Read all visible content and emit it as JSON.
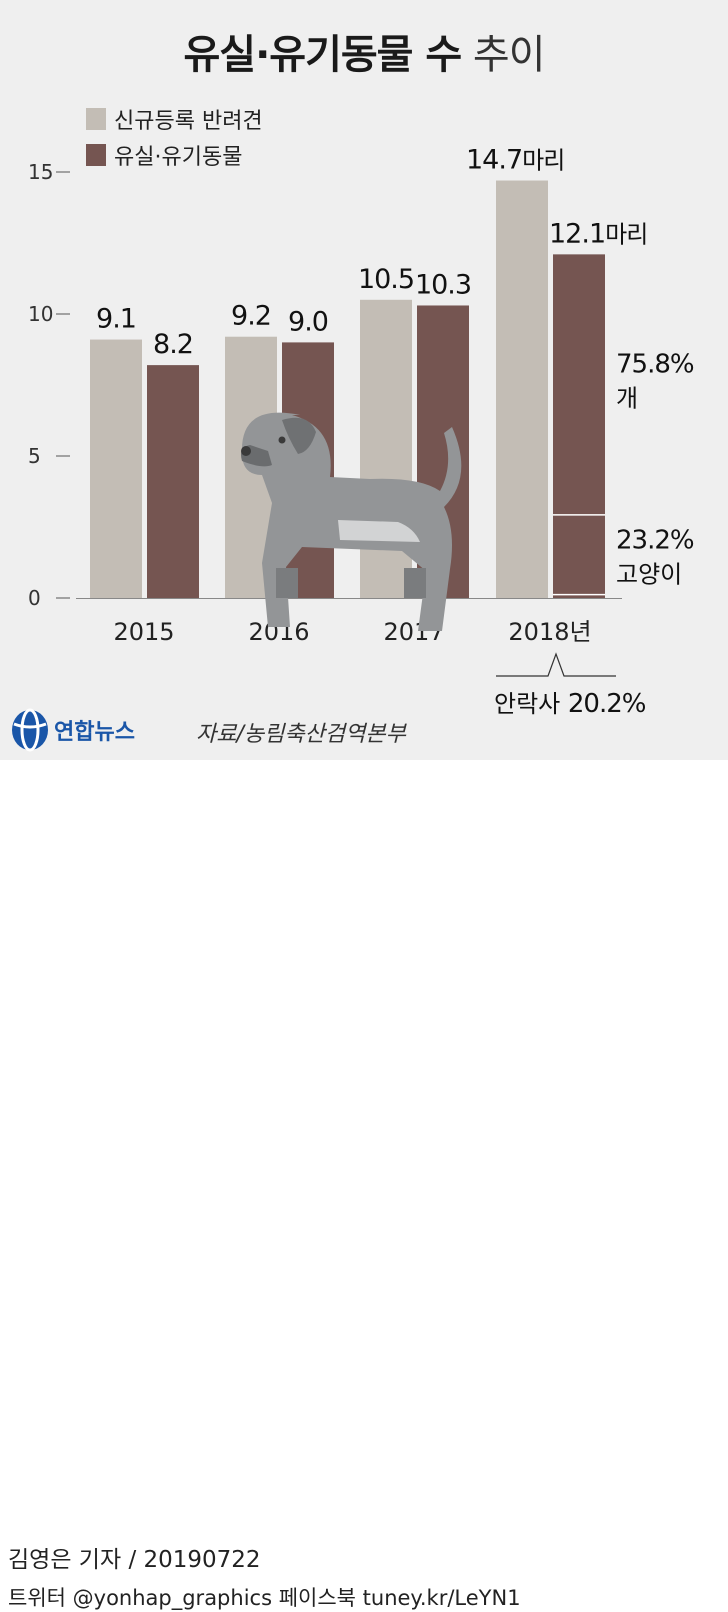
{
  "title": {
    "bold": "유실·유기동물 수",
    "normal": "추이"
  },
  "chart_data": {
    "type": "bar",
    "categories": [
      "2015",
      "2016",
      "2017",
      "2018년"
    ],
    "ylim": [
      0,
      15
    ],
    "yticks": [
      "0",
      "5",
      "10",
      "15"
    ],
    "series": [
      {
        "name": "신규등록 반려견",
        "values": [
          9.1,
          9.2,
          10.5,
          14.7
        ],
        "color": "#c3bdb5",
        "labels": [
          "9.1",
          "9.2",
          "10.5",
          "14.7"
        ]
      },
      {
        "name": "유실·유기동물",
        "values": [
          8.2,
          9.0,
          10.3,
          12.1
        ],
        "color": "#755551",
        "labels": [
          "8.2",
          "9.0",
          "10.3",
          "12.1"
        ]
      }
    ],
    "unit_label": "마리",
    "breakdown_2018": [
      {
        "pct": "75.8%",
        "label": "개",
        "share": 0.758
      },
      {
        "pct": "23.2%",
        "label": "고양이",
        "share": 0.232
      }
    ],
    "euthanasia_note": {
      "label": "안락사",
      "value": "20.2%"
    }
  },
  "source": "자료/농림축산검역본부",
  "logo_text": "연합뉴스",
  "credit": {
    "reporter": "김영은 기자",
    "date": "20190722",
    "social": "트위터 @yonhap_graphics  페이스북 tuney.kr/LeYN1"
  },
  "decor": {
    "dog_icon": "dog-illustration-icon",
    "logo_icon": "yonhap-globe-icon"
  }
}
